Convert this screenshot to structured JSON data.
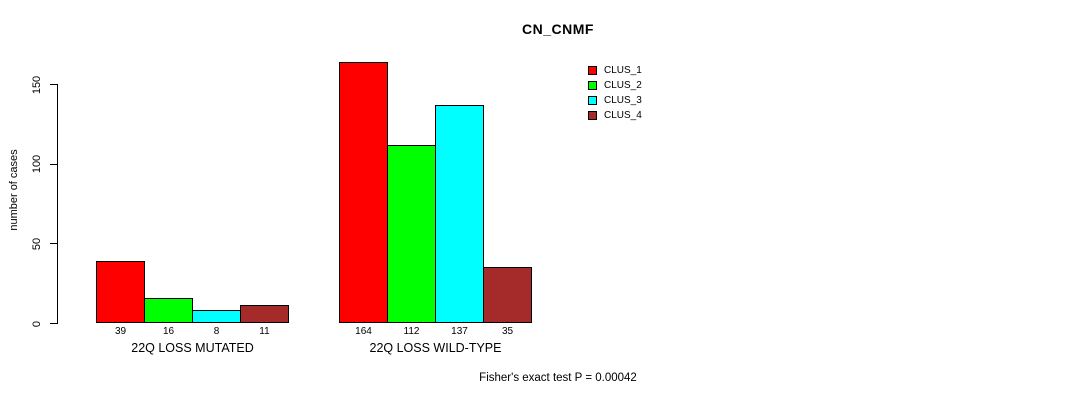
{
  "chart_data": {
    "type": "bar",
    "title": "CN_CNMF",
    "xlabel": "",
    "ylabel": "number of cases",
    "ylim": [
      0,
      150
    ],
    "yticks": [
      0,
      50,
      100,
      150
    ],
    "grid": false,
    "legend_position": "top-right",
    "categories": [
      "22Q LOSS MUTATED",
      "22Q LOSS WILD-TYPE"
    ],
    "series": [
      {
        "name": "CLUS_1",
        "color": "#ff0000",
        "values": [
          39,
          164
        ]
      },
      {
        "name": "CLUS_2",
        "color": "#00ff00",
        "values": [
          16,
          112
        ]
      },
      {
        "name": "CLUS_3",
        "color": "#00ffff",
        "values": [
          8,
          137
        ]
      },
      {
        "name": "CLUS_4",
        "color": "#a52a2a",
        "values": [
          11,
          35
        ]
      }
    ],
    "bar_value_labels": [
      [
        "39",
        "16",
        "8",
        "11"
      ],
      [
        "164",
        "112",
        "137",
        "35"
      ]
    ],
    "annotation": "Fisher's exact test P = 0.00042"
  }
}
